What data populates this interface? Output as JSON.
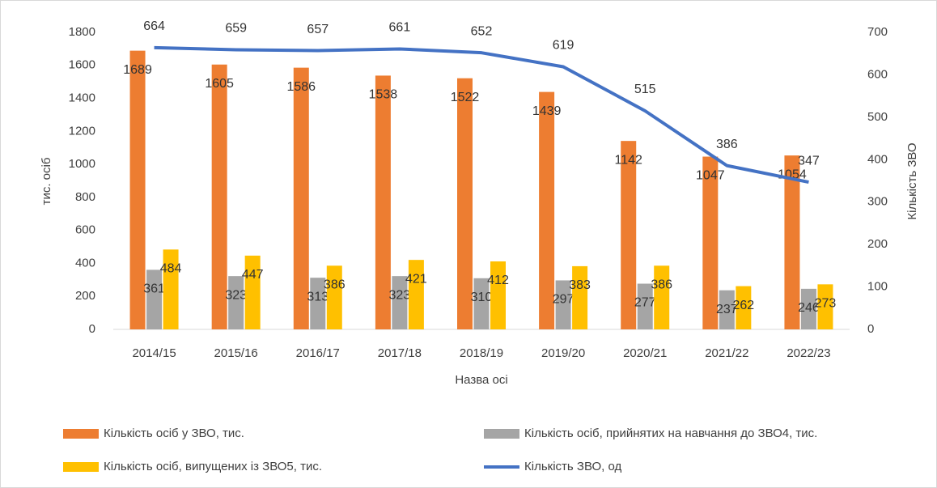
{
  "chart_data": {
    "type": "bar",
    "categories": [
      "2014/15",
      "2015/16",
      "2016/17",
      "2017/18",
      "2018/19",
      "2019/20",
      "2020/21",
      "2021/22",
      "2022/23"
    ],
    "series": [
      {
        "name": "Кількість осіб у ЗВО, тис.",
        "color": "#ed7d31",
        "type": "bar",
        "values": [
          1689,
          1605,
          1586,
          1538,
          1522,
          1439,
          1142,
          1047,
          1054
        ]
      },
      {
        "name": "Кількість осіб, прийнятих на навчання до ЗВО4, тис.",
        "color": "#a5a5a5",
        "type": "bar",
        "values": [
          361,
          323,
          313,
          323,
          310,
          297,
          277,
          237,
          246
        ]
      },
      {
        "name": "Кількість осіб, випущених із ЗВО5, тис.",
        "color": "#ffc000",
        "type": "bar",
        "values": [
          484,
          447,
          386,
          421,
          412,
          383,
          386,
          262,
          273
        ]
      },
      {
        "name": "Кількість ЗВО, од",
        "color": "#4472c4",
        "type": "line",
        "axis": "y2",
        "values": [
          664,
          659,
          657,
          661,
          652,
          619,
          515,
          386,
          347
        ]
      }
    ],
    "y_label": "тис. осіб",
    "y2_label": "Кількість ЗВО",
    "x_label": "Назва осі",
    "ylim": [
      0,
      1800
    ],
    "yticks": [
      0,
      200,
      400,
      600,
      800,
      1000,
      1200,
      1400,
      1600,
      1800
    ],
    "y2lim": [
      0,
      700
    ],
    "y2ticks": [
      0,
      100,
      200,
      300,
      400,
      500,
      600,
      700
    ],
    "legend": "bottom"
  }
}
